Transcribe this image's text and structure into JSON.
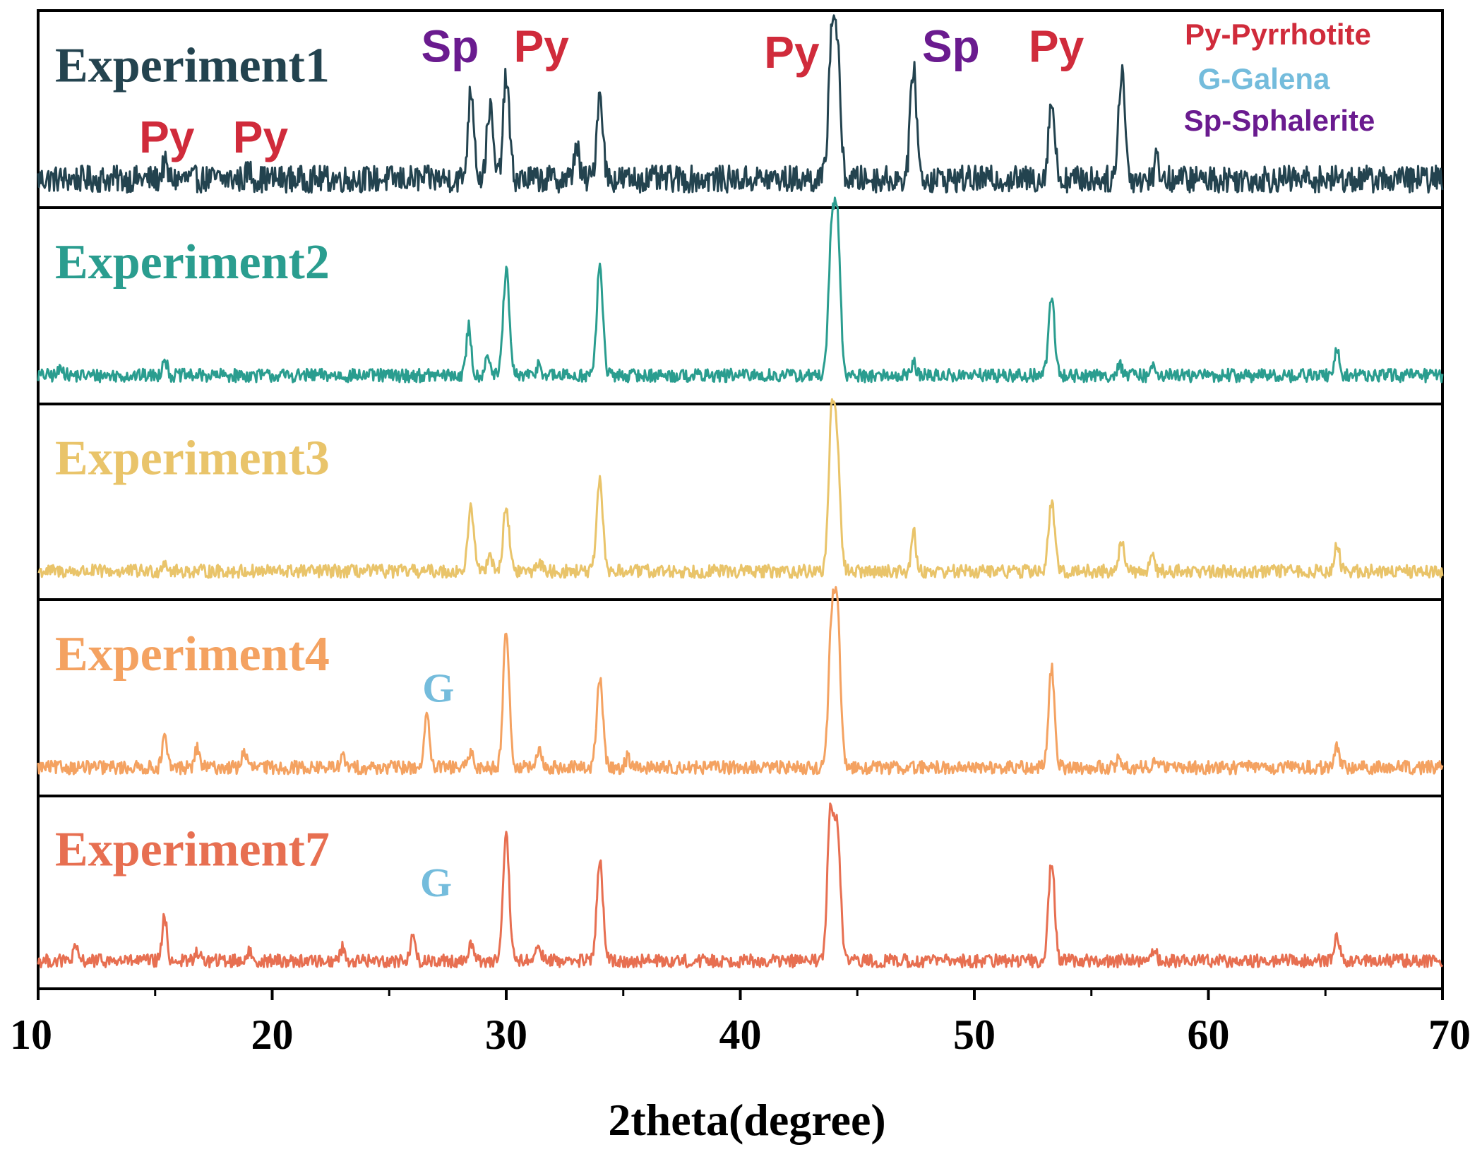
{
  "chart_data": {
    "type": "line",
    "layout": "stacked-panels",
    "xlabel": "2theta(degree)",
    "xlim": [
      10,
      70
    ],
    "x_ticks": [
      10,
      20,
      30,
      40,
      50,
      60,
      70
    ],
    "grid": false,
    "series": [
      {
        "name": "Experiment1",
        "color": "#23434f",
        "noise": 0.09,
        "peaks": [
          {
            "x": 15.4,
            "h": 0.1
          },
          {
            "x": 19.0,
            "h": 0.06
          },
          {
            "x": 28.5,
            "h": 0.6
          },
          {
            "x": 29.3,
            "h": 0.48
          },
          {
            "x": 30.0,
            "h": 0.68
          },
          {
            "x": 33.0,
            "h": 0.24
          },
          {
            "x": 34.0,
            "h": 0.58
          },
          {
            "x": 43.9,
            "h": 0.92
          },
          {
            "x": 44.15,
            "h": 0.8
          },
          {
            "x": 47.4,
            "h": 0.76
          },
          {
            "x": 53.3,
            "h": 0.52
          },
          {
            "x": 56.3,
            "h": 0.75
          },
          {
            "x": 57.8,
            "h": 0.14
          }
        ]
      },
      {
        "name": "Experiment2",
        "color": "#2a9d8f",
        "noise": 0.045,
        "peaks": [
          {
            "x": 11.0,
            "h": 0.06
          },
          {
            "x": 15.4,
            "h": 0.12
          },
          {
            "x": 28.4,
            "h": 0.33
          },
          {
            "x": 29.2,
            "h": 0.15
          },
          {
            "x": 30.0,
            "h": 0.7
          },
          {
            "x": 31.4,
            "h": 0.08
          },
          {
            "x": 34.0,
            "h": 0.73
          },
          {
            "x": 43.9,
            "h": 0.88
          },
          {
            "x": 44.15,
            "h": 0.97
          },
          {
            "x": 47.4,
            "h": 0.09
          },
          {
            "x": 53.3,
            "h": 0.52
          },
          {
            "x": 56.2,
            "h": 0.08
          },
          {
            "x": 57.7,
            "h": 0.07
          },
          {
            "x": 65.5,
            "h": 0.17
          }
        ]
      },
      {
        "name": "Experiment3",
        "color": "#e9c46a",
        "noise": 0.045,
        "peaks": [
          {
            "x": 15.4,
            "h": 0.07
          },
          {
            "x": 28.5,
            "h": 0.42
          },
          {
            "x": 29.3,
            "h": 0.13
          },
          {
            "x": 30.0,
            "h": 0.42
          },
          {
            "x": 31.4,
            "h": 0.07
          },
          {
            "x": 34.0,
            "h": 0.6
          },
          {
            "x": 43.9,
            "h": 0.99
          },
          {
            "x": 44.15,
            "h": 0.75
          },
          {
            "x": 47.4,
            "h": 0.27
          },
          {
            "x": 53.3,
            "h": 0.46
          },
          {
            "x": 56.3,
            "h": 0.22
          },
          {
            "x": 57.6,
            "h": 0.12
          },
          {
            "x": 65.5,
            "h": 0.18
          }
        ]
      },
      {
        "name": "Experiment4",
        "color": "#f4a261",
        "noise": 0.045,
        "peaks": [
          {
            "x": 15.4,
            "h": 0.2
          },
          {
            "x": 16.8,
            "h": 0.13
          },
          {
            "x": 18.8,
            "h": 0.11
          },
          {
            "x": 23.0,
            "h": 0.07
          },
          {
            "x": 26.6,
            "h": 0.38
          },
          {
            "x": 28.5,
            "h": 0.1
          },
          {
            "x": 30.0,
            "h": 0.92
          },
          {
            "x": 31.4,
            "h": 0.11
          },
          {
            "x": 34.0,
            "h": 0.6
          },
          {
            "x": 35.2,
            "h": 0.07
          },
          {
            "x": 43.9,
            "h": 0.92
          },
          {
            "x": 44.15,
            "h": 0.97
          },
          {
            "x": 53.3,
            "h": 0.66
          },
          {
            "x": 56.2,
            "h": 0.07
          },
          {
            "x": 57.7,
            "h": 0.07
          },
          {
            "x": 65.5,
            "h": 0.13
          }
        ]
      },
      {
        "name": "Experiment7",
        "color": "#e76f51",
        "noise": 0.045,
        "peaks": [
          {
            "x": 11.6,
            "h": 0.08
          },
          {
            "x": 15.4,
            "h": 0.3
          },
          {
            "x": 16.8,
            "h": 0.06
          },
          {
            "x": 19.0,
            "h": 0.06
          },
          {
            "x": 23.0,
            "h": 0.09
          },
          {
            "x": 26.0,
            "h": 0.17
          },
          {
            "x": 28.5,
            "h": 0.13
          },
          {
            "x": 30.0,
            "h": 0.84
          },
          {
            "x": 31.4,
            "h": 0.11
          },
          {
            "x": 34.0,
            "h": 0.68
          },
          {
            "x": 43.85,
            "h": 1.0
          },
          {
            "x": 44.15,
            "h": 0.88
          },
          {
            "x": 53.3,
            "h": 0.68
          },
          {
            "x": 57.7,
            "h": 0.07
          },
          {
            "x": 65.5,
            "h": 0.17
          }
        ]
      }
    ],
    "annotations": [
      {
        "panel": 0,
        "text": "Py",
        "x": 15.5,
        "y_rel": 0.28,
        "color": "#d02b3b",
        "style": "sans"
      },
      {
        "panel": 0,
        "text": "Py",
        "x": 19.5,
        "y_rel": 0.28,
        "color": "#d02b3b",
        "style": "sans"
      },
      {
        "panel": 0,
        "text": "Sp",
        "x": 27.6,
        "y_rel": 0.74,
        "color": "#6a1b8f",
        "style": "sans"
      },
      {
        "panel": 0,
        "text": "Py",
        "x": 31.5,
        "y_rel": 0.74,
        "color": "#d02b3b",
        "style": "sans"
      },
      {
        "panel": 0,
        "text": "Py",
        "x": 42.2,
        "y_rel": 0.71,
        "color": "#d02b3b",
        "style": "sans"
      },
      {
        "panel": 0,
        "text": "Sp",
        "x": 49.0,
        "y_rel": 0.74,
        "color": "#6a1b8f",
        "style": "sans"
      },
      {
        "panel": 0,
        "text": "Py",
        "x": 53.5,
        "y_rel": 0.74,
        "color": "#d02b3b",
        "style": "sans"
      },
      {
        "panel": 3,
        "text": "G",
        "x": 27.1,
        "y_rel": 0.48,
        "color": "#74bcdc",
        "style": "serif"
      },
      {
        "panel": 4,
        "text": "G",
        "x": 27.0,
        "y_rel": 0.48,
        "color": "#74bcdc",
        "style": "serif"
      }
    ],
    "legend": {
      "position": "top-right",
      "entries": [
        {
          "text": "Py-Pyrrhotite",
          "color": "#d02b3b"
        },
        {
          "text": "G-Galena",
          "color": "#74bcdc"
        },
        {
          "text": "Sp-Sphalerite",
          "color": "#6a1b8f"
        }
      ]
    }
  }
}
